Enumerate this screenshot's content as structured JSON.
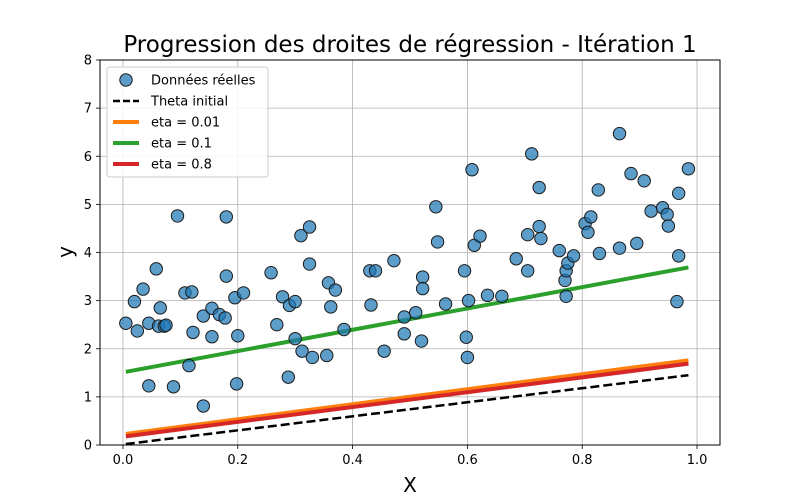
{
  "chart_data": {
    "type": "scatter",
    "title": "Progression des droites de régression - Itération 1",
    "xlabel": "X",
    "ylabel": "y",
    "xlim": [
      -0.04,
      1.04
    ],
    "ylim": [
      0,
      8
    ],
    "xticks": [
      "0.0",
      "0.2",
      "0.4",
      "0.6",
      "0.8",
      "1.0"
    ],
    "yticks": [
      "0",
      "1",
      "2",
      "3",
      "4",
      "5",
      "6",
      "7",
      "8"
    ],
    "grid": true,
    "legend_position": "top-left",
    "legend": [
      {
        "label": "Données réelles",
        "kind": "marker",
        "color": "#1f77b4"
      },
      {
        "label": "Theta initial",
        "kind": "dashed",
        "color": "#000000"
      },
      {
        "label": "eta = 0.01",
        "kind": "line",
        "color": "#ff7f0e"
      },
      {
        "label": "eta = 0.1",
        "kind": "line",
        "color": "#2ca02c"
      },
      {
        "label": "eta = 0.8",
        "kind": "line",
        "color": "#d62728"
      }
    ],
    "series": [
      {
        "name": "Données réelles",
        "type": "scatter",
        "color": "#1f77b4",
        "points": [
          [
            0.005,
            2.53
          ],
          [
            0.02,
            2.98
          ],
          [
            0.025,
            2.37
          ],
          [
            0.035,
            3.24
          ],
          [
            0.045,
            1.23
          ],
          [
            0.045,
            2.53
          ],
          [
            0.058,
            3.66
          ],
          [
            0.062,
            2.47
          ],
          [
            0.065,
            2.85
          ],
          [
            0.072,
            2.47
          ],
          [
            0.075,
            2.49
          ],
          [
            0.088,
            1.21
          ],
          [
            0.095,
            4.76
          ],
          [
            0.108,
            3.16
          ],
          [
            0.115,
            1.65
          ],
          [
            0.12,
            3.18
          ],
          [
            0.122,
            2.34
          ],
          [
            0.14,
            0.81
          ],
          [
            0.14,
            2.68
          ],
          [
            0.155,
            2.84
          ],
          [
            0.155,
            2.25
          ],
          [
            0.168,
            2.71
          ],
          [
            0.178,
            2.64
          ],
          [
            0.18,
            3.51
          ],
          [
            0.18,
            4.74
          ],
          [
            0.195,
            3.06
          ],
          [
            0.2,
            2.27
          ],
          [
            0.198,
            1.27
          ],
          [
            0.21,
            3.16
          ],
          [
            0.258,
            3.58
          ],
          [
            0.268,
            2.5
          ],
          [
            0.278,
            3.08
          ],
          [
            0.288,
            1.41
          ],
          [
            0.29,
            2.9
          ],
          [
            0.3,
            2.98
          ],
          [
            0.3,
            2.21
          ],
          [
            0.31,
            4.35
          ],
          [
            0.312,
            1.95
          ],
          [
            0.325,
            4.53
          ],
          [
            0.325,
            3.76
          ],
          [
            0.33,
            1.82
          ],
          [
            0.355,
            1.86
          ],
          [
            0.358,
            3.37
          ],
          [
            0.362,
            2.87
          ],
          [
            0.37,
            3.22
          ],
          [
            0.385,
            2.4
          ],
          [
            0.43,
            3.62
          ],
          [
            0.432,
            2.91
          ],
          [
            0.44,
            3.62
          ],
          [
            0.455,
            1.95
          ],
          [
            0.472,
            3.83
          ],
          [
            0.49,
            2.66
          ],
          [
            0.49,
            2.31
          ],
          [
            0.51,
            2.75
          ],
          [
            0.52,
            2.16
          ],
          [
            0.522,
            3.49
          ],
          [
            0.522,
            3.25
          ],
          [
            0.545,
            4.95
          ],
          [
            0.548,
            4.22
          ],
          [
            0.562,
            2.93
          ],
          [
            0.595,
            3.62
          ],
          [
            0.598,
            2.24
          ],
          [
            0.6,
            1.82
          ],
          [
            0.602,
            3.0
          ],
          [
            0.608,
            5.72
          ],
          [
            0.612,
            4.15
          ],
          [
            0.622,
            4.34
          ],
          [
            0.635,
            3.11
          ],
          [
            0.66,
            3.09
          ],
          [
            0.685,
            3.87
          ],
          [
            0.705,
            4.37
          ],
          [
            0.705,
            3.62
          ],
          [
            0.712,
            6.05
          ],
          [
            0.725,
            5.35
          ],
          [
            0.725,
            4.54
          ],
          [
            0.728,
            4.29
          ],
          [
            0.76,
            4.04
          ],
          [
            0.77,
            3.42
          ],
          [
            0.772,
            3.62
          ],
          [
            0.772,
            3.09
          ],
          [
            0.775,
            3.78
          ],
          [
            0.785,
            3.93
          ],
          [
            0.805,
            4.6
          ],
          [
            0.81,
            4.42
          ],
          [
            0.815,
            4.74
          ],
          [
            0.828,
            5.3
          ],
          [
            0.83,
            3.98
          ],
          [
            0.865,
            6.47
          ],
          [
            0.865,
            4.09
          ],
          [
            0.885,
            5.64
          ],
          [
            0.895,
            4.19
          ],
          [
            0.908,
            5.49
          ],
          [
            0.92,
            4.86
          ],
          [
            0.94,
            4.93
          ],
          [
            0.948,
            4.79
          ],
          [
            0.95,
            4.55
          ],
          [
            0.965,
            2.98
          ],
          [
            0.968,
            5.23
          ],
          [
            0.968,
            3.93
          ],
          [
            0.985,
            5.74
          ]
        ]
      },
      {
        "name": "Theta initial",
        "type": "line",
        "style": "dashed",
        "color": "#000000",
        "x": [
          0.005,
          0.985
        ],
        "y": [
          0.02,
          1.45
        ]
      },
      {
        "name": "eta = 0.01",
        "type": "line",
        "color": "#ff7f0e",
        "x": [
          0.005,
          0.985
        ],
        "y": [
          0.23,
          1.76
        ]
      },
      {
        "name": "eta = 0.1",
        "type": "line",
        "color": "#2ca02c",
        "x": [
          0.005,
          0.985
        ],
        "y": [
          1.52,
          3.69
        ]
      },
      {
        "name": "eta = 0.8",
        "type": "line",
        "color": "#d62728",
        "x": [
          0.005,
          0.985
        ],
        "y": [
          0.18,
          1.69
        ]
      }
    ]
  }
}
